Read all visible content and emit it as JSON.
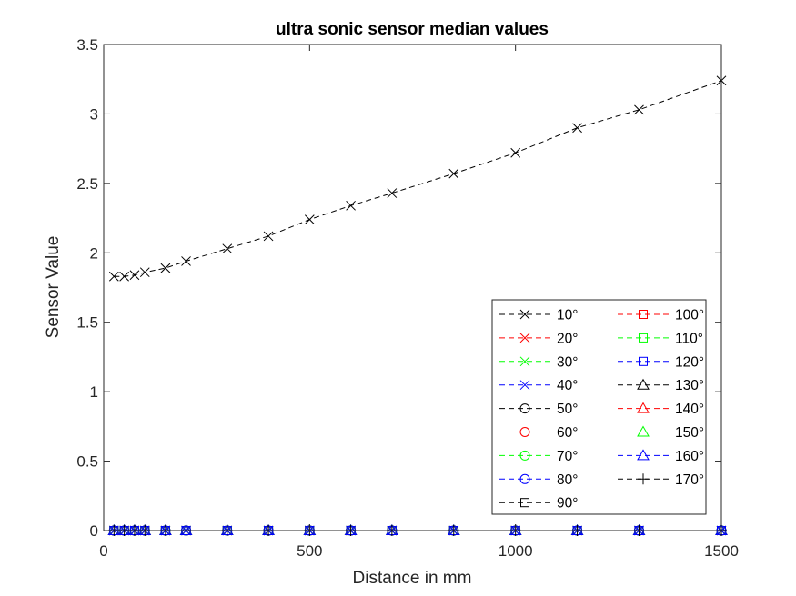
{
  "chart_data": {
    "type": "line",
    "title": "ultra sonic sensor median values",
    "xlabel": "Distance in mm",
    "ylabel": "Sensor Value",
    "xlim": [
      0,
      1500
    ],
    "ylim": [
      0,
      3.5
    ],
    "xticks": [
      0,
      500,
      1000,
      1500
    ],
    "xtick_labels": [
      "0",
      "500",
      "1000",
      "1500"
    ],
    "yticks": [
      0,
      0.5,
      1,
      1.5,
      2,
      2.5,
      3,
      3.5
    ],
    "ytick_labels": [
      "0",
      "0.5",
      "1",
      "1.5",
      "2",
      "2.5",
      "3",
      "3.5"
    ],
    "grid": false,
    "legend_position": "bottom-right",
    "legend_columns": 2,
    "x": [
      25,
      50,
      75,
      100,
      150,
      200,
      300,
      400,
      500,
      600,
      700,
      850,
      1000,
      1150,
      1300,
      1500
    ],
    "series": [
      {
        "name": "10°",
        "color": "#000000",
        "marker": "x",
        "values": [
          1.83,
          1.83,
          1.84,
          1.86,
          1.89,
          1.94,
          2.03,
          2.12,
          2.24,
          2.34,
          2.43,
          2.57,
          2.72,
          2.9,
          3.03,
          3.24
        ]
      },
      {
        "name": "20°",
        "color": "#ff0000",
        "marker": "x",
        "values": [
          0,
          0,
          0,
          0,
          0,
          0,
          0,
          0,
          0,
          0,
          0,
          0,
          0,
          0,
          0,
          0
        ]
      },
      {
        "name": "30°",
        "color": "#00ff00",
        "marker": "x",
        "values": [
          0,
          0,
          0,
          0,
          0,
          0,
          0,
          0,
          0,
          0,
          0,
          0,
          0,
          0,
          0,
          0
        ]
      },
      {
        "name": "40°",
        "color": "#0000ff",
        "marker": "x",
        "values": [
          0,
          0,
          0,
          0,
          0,
          0,
          0,
          0,
          0,
          0,
          0,
          0,
          0,
          0,
          0,
          0
        ]
      },
      {
        "name": "50°",
        "color": "#000000",
        "marker": "circle",
        "values": [
          0,
          0,
          0,
          0,
          0,
          0,
          0,
          0,
          0,
          0,
          0,
          0,
          0,
          0,
          0,
          0
        ]
      },
      {
        "name": "60°",
        "color": "#ff0000",
        "marker": "circle",
        "values": [
          0,
          0,
          0,
          0,
          0,
          0,
          0,
          0,
          0,
          0,
          0,
          0,
          0,
          0,
          0,
          0
        ]
      },
      {
        "name": "70°",
        "color": "#00ff00",
        "marker": "circle",
        "values": [
          0,
          0,
          0,
          0,
          0,
          0,
          0,
          0,
          0,
          0,
          0,
          0,
          0,
          0,
          0,
          0
        ]
      },
      {
        "name": "80°",
        "color": "#0000ff",
        "marker": "circle",
        "values": [
          0,
          0,
          0,
          0,
          0,
          0,
          0,
          0,
          0,
          0,
          0,
          0,
          0,
          0,
          0,
          0
        ]
      },
      {
        "name": "90°",
        "color": "#000000",
        "marker": "square",
        "values": [
          0,
          0,
          0,
          0,
          0,
          0,
          0,
          0,
          0,
          0,
          0,
          0,
          0,
          0,
          0,
          0
        ]
      },
      {
        "name": "100°",
        "color": "#ff0000",
        "marker": "square",
        "values": [
          0,
          0,
          0,
          0,
          0,
          0,
          0,
          0,
          0,
          0,
          0,
          0,
          0,
          0,
          0,
          0
        ]
      },
      {
        "name": "110°",
        "color": "#00ff00",
        "marker": "square",
        "values": [
          0,
          0,
          0,
          0,
          0,
          0,
          0,
          0,
          0,
          0,
          0,
          0,
          0,
          0,
          0,
          0
        ]
      },
      {
        "name": "120°",
        "color": "#0000ff",
        "marker": "square",
        "values": [
          0,
          0,
          0,
          0,
          0,
          0,
          0,
          0,
          0,
          0,
          0,
          0,
          0,
          0,
          0,
          0
        ]
      },
      {
        "name": "130°",
        "color": "#000000",
        "marker": "triangle",
        "values": [
          0,
          0,
          0,
          0,
          0,
          0,
          0,
          0,
          0,
          0,
          0,
          0,
          0,
          0,
          0,
          0
        ]
      },
      {
        "name": "140°",
        "color": "#ff0000",
        "marker": "triangle",
        "values": [
          0,
          0,
          0,
          0,
          0,
          0,
          0,
          0,
          0,
          0,
          0,
          0,
          0,
          0,
          0,
          0
        ]
      },
      {
        "name": "150°",
        "color": "#00ff00",
        "marker": "triangle",
        "values": [
          0,
          0,
          0,
          0,
          0,
          0,
          0,
          0,
          0,
          0,
          0,
          0,
          0,
          0,
          0,
          0
        ]
      },
      {
        "name": "160°",
        "color": "#0000ff",
        "marker": "triangle",
        "values": [
          0,
          0,
          0,
          0,
          0,
          0,
          0,
          0,
          0,
          0,
          0,
          0,
          0,
          0,
          0,
          0
        ]
      },
      {
        "name": "170°",
        "color": "#000000",
        "marker": "plus",
        "values": [
          0,
          0,
          0,
          0,
          0,
          0,
          0,
          0,
          0,
          0,
          0,
          0,
          0,
          0,
          0,
          0
        ]
      }
    ]
  }
}
